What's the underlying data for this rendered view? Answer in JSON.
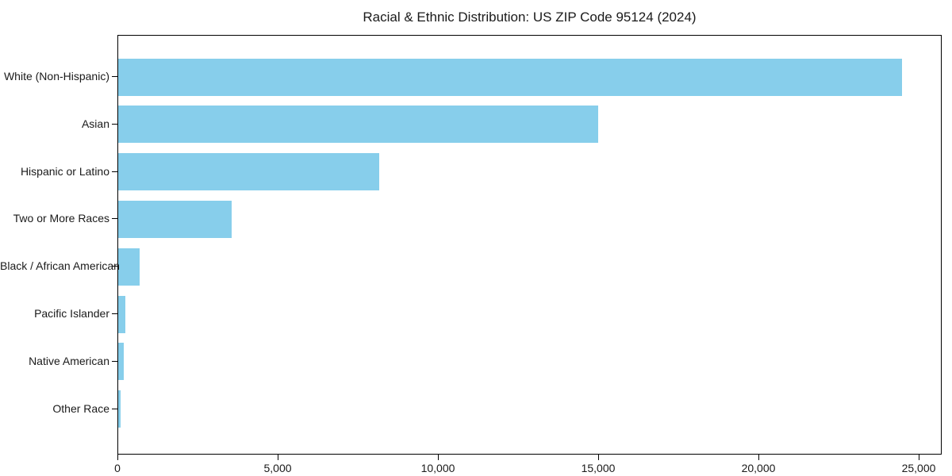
{
  "chart_data": {
    "type": "bar",
    "orientation": "horizontal",
    "title": "Racial & Ethnic Distribution: US ZIP Code 95124 (2024)",
    "categories": [
      "White (Non-Hispanic)",
      "Asian",
      "Hispanic or Latino",
      "Two or More Races",
      "Black / African American",
      "Pacific Islander",
      "Native American",
      "Other Race"
    ],
    "values": [
      24450,
      14970,
      8140,
      3540,
      660,
      230,
      180,
      70
    ],
    "xlabel": "",
    "ylabel": "",
    "xlim": [
      0,
      25000
    ],
    "x_ticks": [
      0,
      5000,
      10000,
      15000,
      20000,
      25000
    ],
    "x_tick_labels": [
      "0",
      "5,000",
      "10,000",
      "15,000",
      "20,000",
      "25,000"
    ],
    "bar_color": "#87CEEB",
    "axis_color": "#000000",
    "grid": false,
    "legend_position": "none"
  }
}
